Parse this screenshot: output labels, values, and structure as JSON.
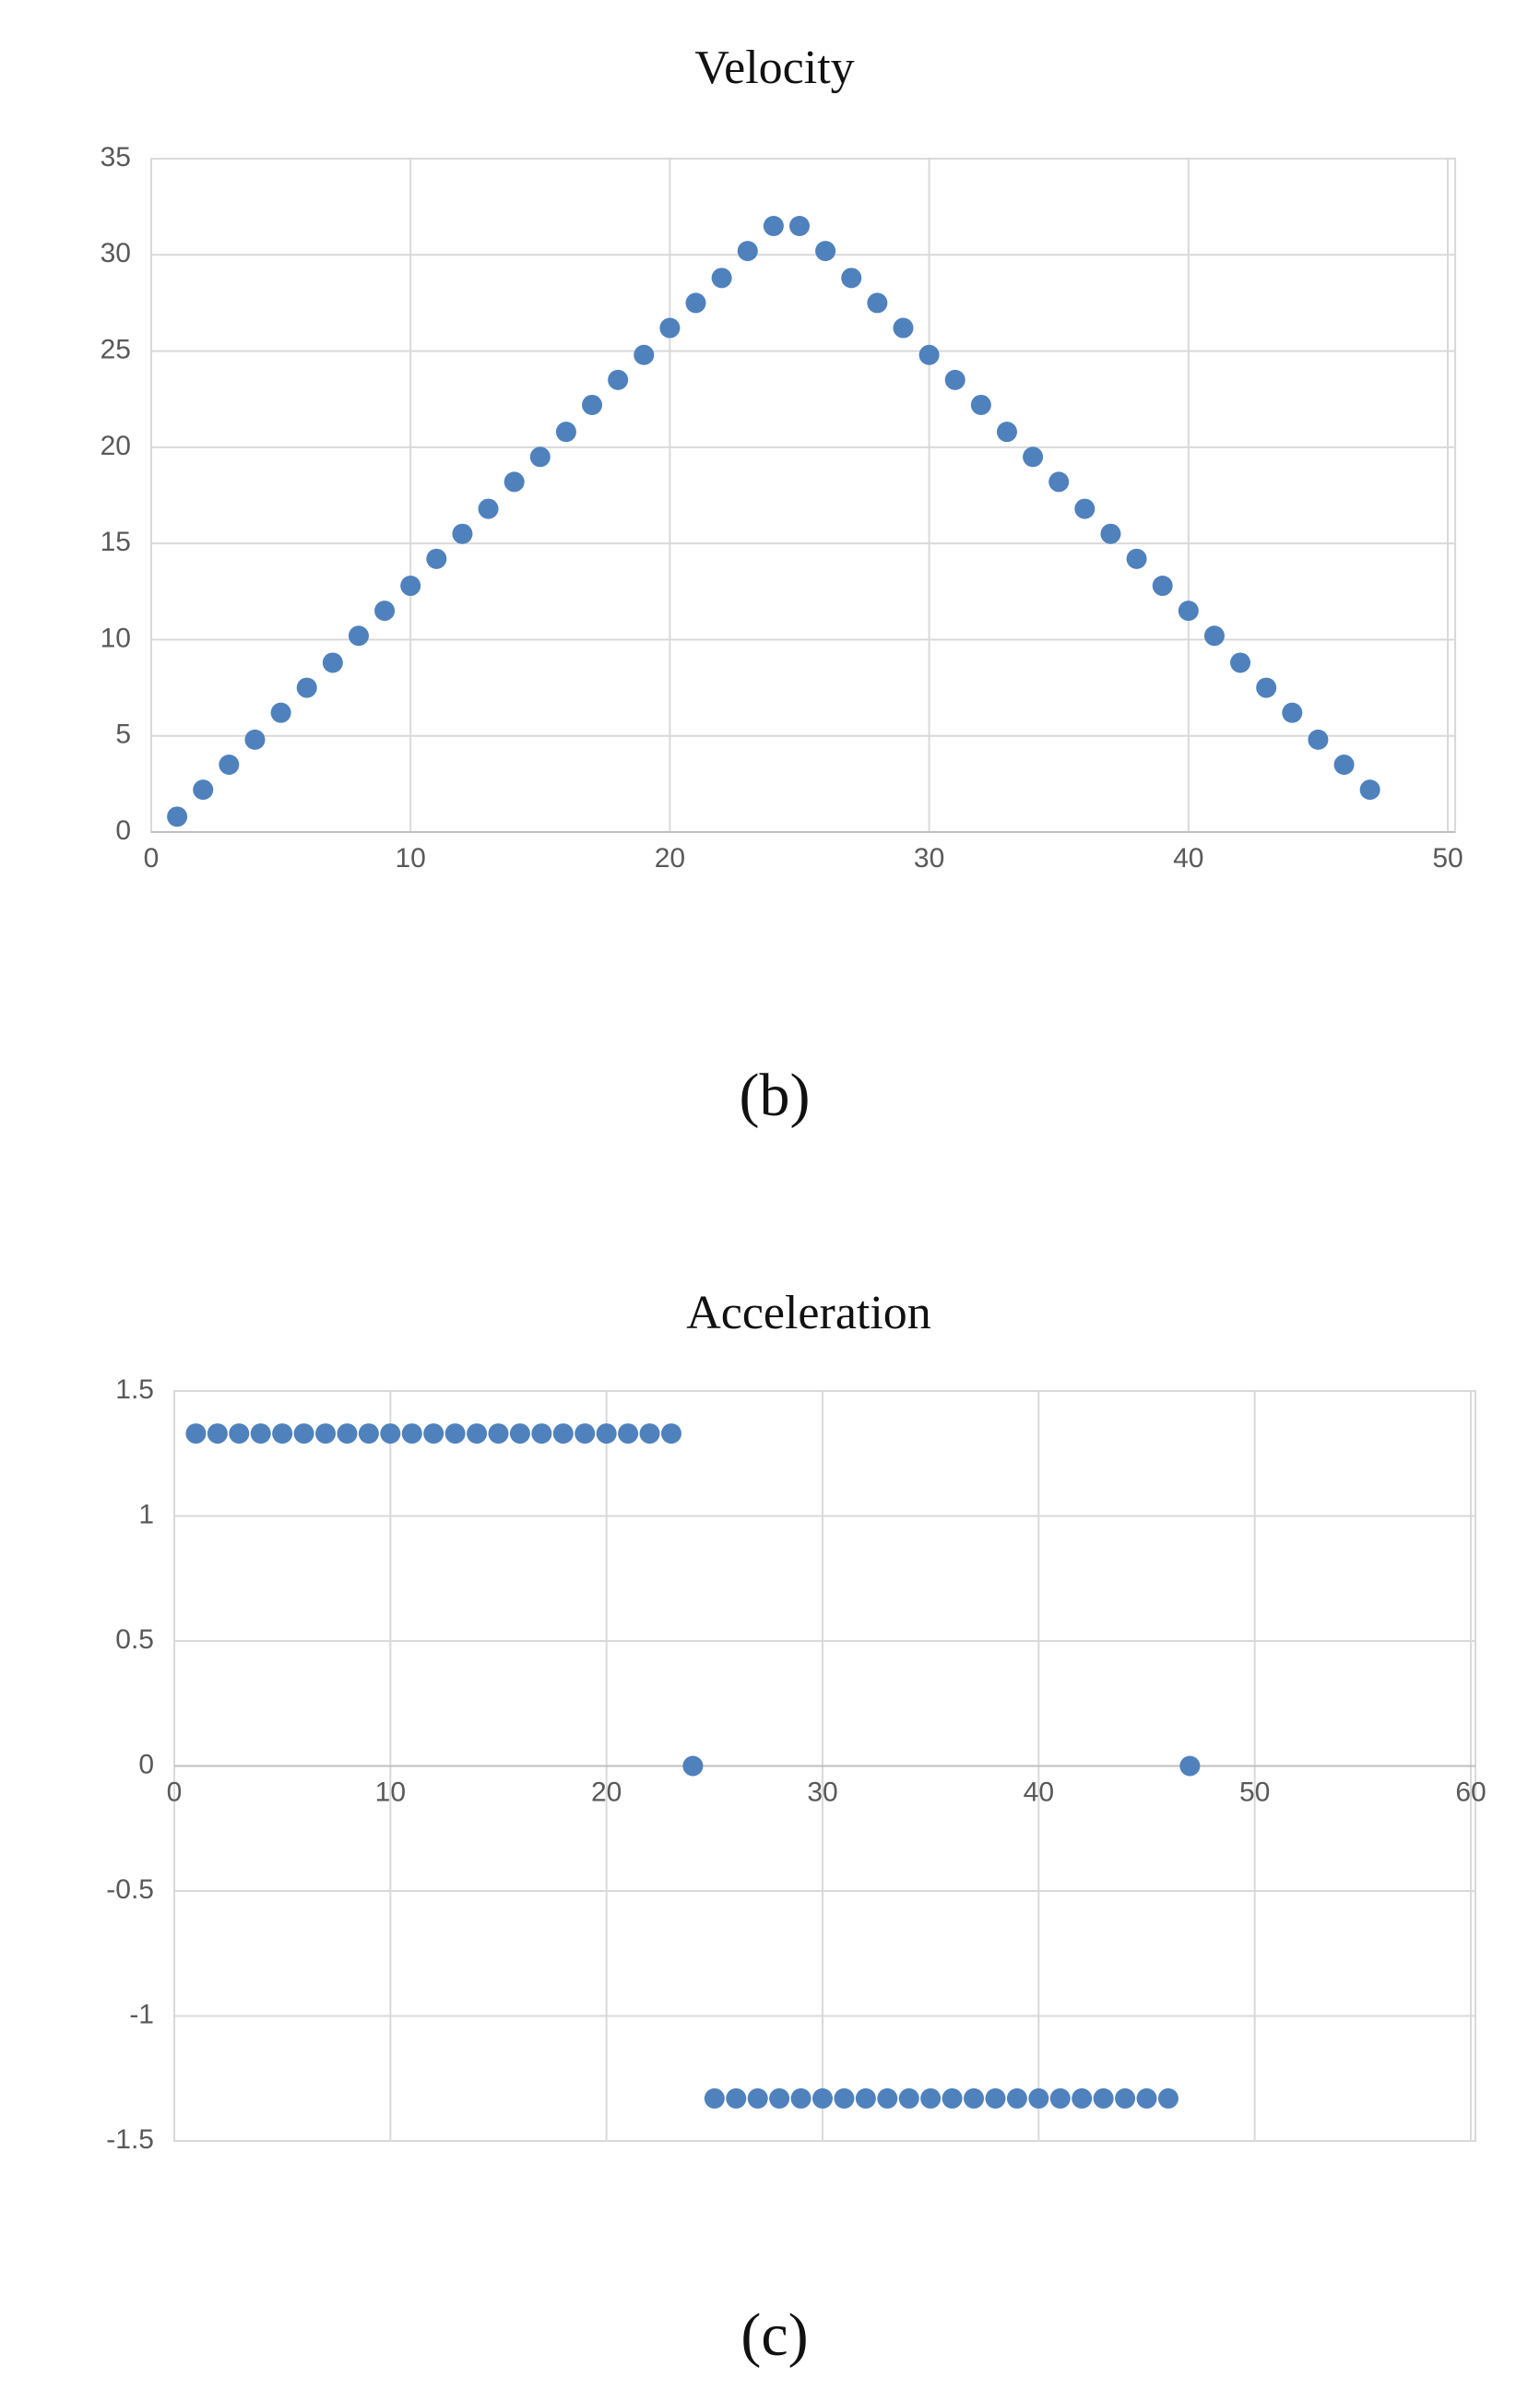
{
  "chart_data": [
    {
      "type": "scatter",
      "title": "Velocity",
      "caption": "(b)",
      "color": "#4f81bd",
      "grid": true,
      "x": [
        1,
        2,
        3,
        4,
        5,
        6,
        7,
        8,
        9,
        10,
        11,
        12,
        13,
        14,
        15,
        16,
        17,
        18,
        19,
        20,
        21,
        22,
        23,
        24,
        25,
        26,
        27,
        28,
        29,
        30,
        31,
        32,
        33,
        34,
        35,
        36,
        37,
        38,
        39,
        40,
        41,
        42,
        43,
        44,
        45,
        46,
        47
      ],
      "values": [
        0.8,
        2.2,
        3.5,
        4.8,
        6.2,
        7.5,
        8.8,
        10.2,
        11.5,
        12.8,
        14.2,
        15.5,
        16.8,
        18.2,
        19.5,
        20.8,
        22.2,
        23.5,
        24.8,
        26.2,
        27.5,
        28.8,
        30.2,
        31.5,
        31.5,
        30.2,
        28.8,
        27.5,
        26.2,
        24.8,
        23.5,
        22.2,
        20.8,
        19.5,
        18.2,
        16.8,
        15.5,
        14.2,
        12.8,
        11.5,
        10.2,
        8.8,
        7.5,
        6.2,
        4.8,
        3.5,
        2.2
      ],
      "xlim": [
        0,
        50
      ],
      "xticks": [
        0,
        10,
        20,
        30,
        40,
        50
      ],
      "ylim": [
        0,
        35
      ],
      "yticks": [
        0,
        5,
        10,
        15,
        20,
        25,
        30,
        35
      ]
    },
    {
      "type": "scatter",
      "title": "Acceleration",
      "caption": "(c)",
      "color": "#4f81bd",
      "grid": true,
      "x": [
        1,
        2,
        3,
        4,
        5,
        6,
        7,
        8,
        9,
        10,
        11,
        12,
        13,
        14,
        15,
        16,
        17,
        18,
        19,
        20,
        21,
        22,
        23,
        24,
        25,
        26,
        27,
        28,
        29,
        30,
        31,
        32,
        33,
        34,
        35,
        36,
        37,
        38,
        39,
        40,
        41,
        42,
        43,
        44,
        45,
        46,
        47
      ],
      "values": [
        1.33,
        1.33,
        1.33,
        1.33,
        1.33,
        1.33,
        1.33,
        1.33,
        1.33,
        1.33,
        1.33,
        1.33,
        1.33,
        1.33,
        1.33,
        1.33,
        1.33,
        1.33,
        1.33,
        1.33,
        1.33,
        1.33,
        1.33,
        0,
        -1.33,
        -1.33,
        -1.33,
        -1.33,
        -1.33,
        -1.33,
        -1.33,
        -1.33,
        -1.33,
        -1.33,
        -1.33,
        -1.33,
        -1.33,
        -1.33,
        -1.33,
        -1.33,
        -1.33,
        -1.33,
        -1.33,
        -1.33,
        -1.33,
        -1.33,
        0
      ],
      "xlim": [
        0,
        60
      ],
      "xticks": [
        0,
        10,
        20,
        30,
        40,
        50,
        60
      ],
      "ylim": [
        -1.5,
        1.5
      ],
      "yticks": [
        -1.5,
        -1,
        -0.5,
        0,
        0.5,
        1,
        1.5
      ]
    }
  ]
}
